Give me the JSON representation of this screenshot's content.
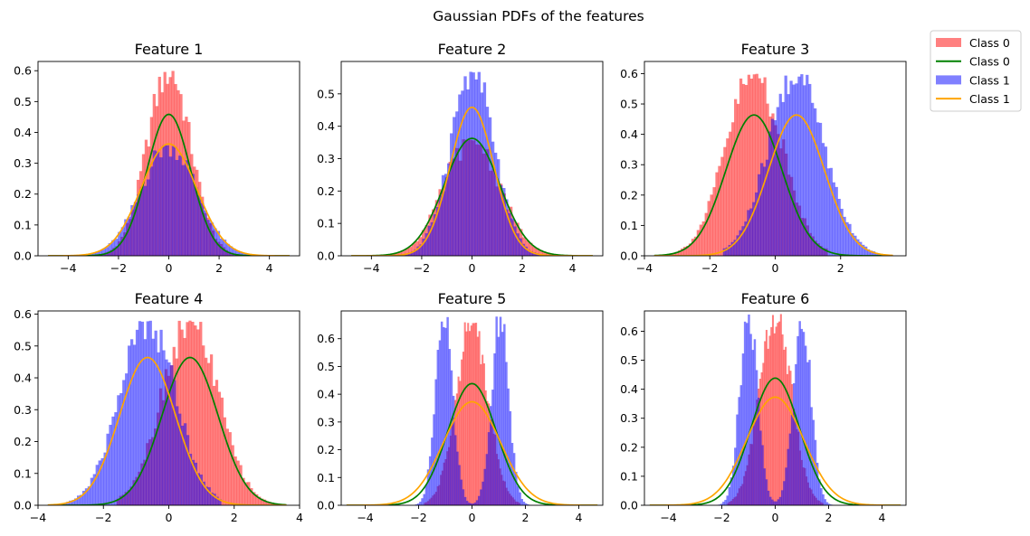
{
  "figure": {
    "suptitle": "Gaussian PDFs of the features"
  },
  "legend": {
    "placement": "upper-right-outside",
    "entries": [
      {
        "label": "Class 0",
        "kind": "patch",
        "color": "#ff8080"
      },
      {
        "label": "Class 0",
        "kind": "line",
        "color": "#008000"
      },
      {
        "label": "Class 1",
        "kind": "patch",
        "color": "#8080ff"
      },
      {
        "label": "Class 1",
        "kind": "line",
        "color": "#ffa500"
      }
    ]
  },
  "colors": {
    "class0_hist": "#ff0000",
    "class1_hist": "#0000ff",
    "class0_pdf": "#008000",
    "class1_pdf": "#ffa500",
    "hist_alpha": 0.5
  },
  "chart_data": [
    {
      "type": "histogram+line",
      "title": "Feature 1",
      "xlim": [
        -5.2,
        5.2
      ],
      "ylim": [
        0,
        0.63
      ],
      "xticks": [
        "-4",
        "-2",
        "0",
        "2",
        "4"
      ],
      "xtick_values": [
        -4,
        -2,
        0,
        2,
        4
      ],
      "yticks": [
        "0.0",
        "0.1",
        "0.2",
        "0.3",
        "0.4",
        "0.5",
        "0.6"
      ],
      "ytick_values": [
        0,
        0.1,
        0.2,
        0.3,
        0.4,
        0.5,
        0.6
      ],
      "series": [
        {
          "name": "Class 0",
          "kind": "hist",
          "mean": 0,
          "std": 0.87,
          "range": [
            -3.2,
            3.2
          ],
          "peak": 0.6
        },
        {
          "name": "Class 1",
          "kind": "hist",
          "mean": 0,
          "std": 1.1,
          "range": [
            -3.8,
            3.8
          ],
          "peak": 0.36
        },
        {
          "name": "Class 0",
          "kind": "pdf",
          "mean": 0,
          "std": 0.87,
          "range": [
            -4.8,
            4.8
          ]
        },
        {
          "name": "Class 1",
          "kind": "pdf",
          "mean": 0,
          "std": 1.1,
          "range": [
            -4.8,
            4.8
          ]
        }
      ]
    },
    {
      "type": "histogram+line",
      "title": "Feature 2",
      "xlim": [
        -5.2,
        5.2
      ],
      "ylim": [
        0,
        0.6
      ],
      "xticks": [
        "-4",
        "-2",
        "0",
        "2",
        "4"
      ],
      "xtick_values": [
        -4,
        -2,
        0,
        2,
        4
      ],
      "yticks": [
        "0.0",
        "0.1",
        "0.2",
        "0.3",
        "0.4",
        "0.5"
      ],
      "ytick_values": [
        0,
        0.1,
        0.2,
        0.3,
        0.4,
        0.5
      ],
      "series": [
        {
          "name": "Class 0",
          "kind": "hist",
          "mean": 0,
          "std": 1.1,
          "range": [
            -4.0,
            4.0
          ],
          "peak": 0.36
        },
        {
          "name": "Class 1",
          "kind": "hist",
          "mean": 0,
          "std": 0.87,
          "range": [
            -3.3,
            3.3
          ],
          "peak": 0.57
        },
        {
          "name": "Class 0",
          "kind": "pdf",
          "mean": 0,
          "std": 1.1,
          "range": [
            -4.8,
            4.8
          ]
        },
        {
          "name": "Class 1",
          "kind": "pdf",
          "mean": 0,
          "std": 0.87,
          "range": [
            -4.8,
            4.8
          ]
        }
      ]
    },
    {
      "type": "histogram+line",
      "title": "Feature 3",
      "xlim": [
        -4.0,
        4.0
      ],
      "ylim": [
        0,
        0.64
      ],
      "xticks": [
        "-4",
        "-2",
        "0",
        "2"
      ],
      "xtick_values": [
        -4,
        -2,
        0,
        2
      ],
      "yticks": [
        "0.0",
        "0.1",
        "0.2",
        "0.3",
        "0.4",
        "0.5",
        "0.6"
      ],
      "ytick_values": [
        0,
        0.1,
        0.2,
        0.3,
        0.4,
        0.5,
        0.6
      ],
      "series": [
        {
          "name": "Class 0",
          "kind": "hist",
          "mean": -0.65,
          "std": 0.86,
          "range": [
            -3.3,
            1.6
          ],
          "peak": 0.6
        },
        {
          "name": "Class 1",
          "kind": "hist",
          "mean": 0.65,
          "std": 0.86,
          "range": [
            -1.6,
            3.3
          ],
          "peak": 0.6
        },
        {
          "name": "Class 0",
          "kind": "pdf",
          "mean": -0.65,
          "std": 0.86,
          "range": [
            -3.7,
            3.6
          ]
        },
        {
          "name": "Class 1",
          "kind": "pdf",
          "mean": 0.65,
          "std": 0.86,
          "range": [
            -3.7,
            3.6
          ]
        }
      ]
    },
    {
      "type": "histogram+line",
      "title": "Feature 4",
      "xlim": [
        -4.0,
        4.0
      ],
      "ylim": [
        0,
        0.61
      ],
      "xticks": [
        "-4",
        "-2",
        "0",
        "2",
        "4"
      ],
      "xtick_values": [
        -4,
        -2,
        0,
        2,
        4
      ],
      "yticks": [
        "0.0",
        "0.1",
        "0.2",
        "0.3",
        "0.4",
        "0.5",
        "0.6"
      ],
      "ytick_values": [
        0,
        0.1,
        0.2,
        0.3,
        0.4,
        0.5,
        0.6
      ],
      "series": [
        {
          "name": "Class 0",
          "kind": "hist",
          "mean": 0.65,
          "std": 0.86,
          "range": [
            -1.6,
            3.3
          ],
          "peak": 0.58
        },
        {
          "name": "Class 1",
          "kind": "hist",
          "mean": -0.65,
          "std": 0.86,
          "range": [
            -3.3,
            1.6
          ],
          "peak": 0.58
        },
        {
          "name": "Class 0",
          "kind": "pdf",
          "mean": 0.65,
          "std": 0.86,
          "range": [
            -3.7,
            3.6
          ]
        },
        {
          "name": "Class 1",
          "kind": "pdf",
          "mean": -0.65,
          "std": 0.86,
          "range": [
            -3.7,
            3.6
          ]
        }
      ]
    },
    {
      "type": "histogram+line",
      "title": "Feature 5",
      "xlim": [
        -4.9,
        4.9
      ],
      "ylim": [
        0,
        0.7
      ],
      "xticks": [
        "-4",
        "-2",
        "0",
        "2",
        "4"
      ],
      "xtick_values": [
        -4,
        -2,
        0,
        2,
        4
      ],
      "yticks": [
        "0.0",
        "0.1",
        "0.2",
        "0.3",
        "0.4",
        "0.5",
        "0.6"
      ],
      "ytick_values": [
        0,
        0.1,
        0.2,
        0.3,
        0.4,
        0.5,
        0.6
      ],
      "series": [
        {
          "name": "Class 0",
          "kind": "hist",
          "mean": 0,
          "std": 0.6,
          "range": [
            -1.8,
            1.8
          ],
          "peak": 0.66
        },
        {
          "name": "Class 1",
          "kind": "hist",
          "bimodal": true,
          "modes": [
            -1.05,
            1.05
          ],
          "std": 0.32,
          "range": [
            -2.2,
            2.2
          ],
          "peak": 0.68
        },
        {
          "name": "Class 0",
          "kind": "pdf",
          "mean": 0,
          "std": 0.91,
          "range": [
            -4.7,
            4.7
          ]
        },
        {
          "name": "Class 1",
          "kind": "pdf",
          "mean": 0,
          "std": 1.07,
          "range": [
            -4.7,
            4.7
          ]
        }
      ]
    },
    {
      "type": "histogram+line",
      "title": "Feature 6",
      "xlim": [
        -4.9,
        4.9
      ],
      "ylim": [
        0,
        0.67
      ],
      "xticks": [
        "-4",
        "-2",
        "0",
        "2",
        "4"
      ],
      "xtick_values": [
        -4,
        -2,
        0,
        2,
        4
      ],
      "yticks": [
        "0.0",
        "0.1",
        "0.2",
        "0.3",
        "0.4",
        "0.5",
        "0.6"
      ],
      "ytick_values": [
        0,
        0.1,
        0.2,
        0.3,
        0.4,
        0.5,
        0.6
      ],
      "series": [
        {
          "name": "Class 0",
          "kind": "hist",
          "mean": 0,
          "std": 0.6,
          "range": [
            -1.8,
            1.8
          ],
          "peak": 0.66
        },
        {
          "name": "Class 1",
          "kind": "hist",
          "bimodal": true,
          "modes": [
            -1.0,
            1.0
          ],
          "std": 0.33,
          "range": [
            -2.2,
            2.2
          ],
          "peak": 0.66
        },
        {
          "name": "Class 0",
          "kind": "pdf",
          "mean": 0,
          "std": 0.91,
          "range": [
            -4.7,
            4.7
          ]
        },
        {
          "name": "Class 1",
          "kind": "pdf",
          "mean": 0,
          "std": 1.07,
          "range": [
            -4.7,
            4.7
          ]
        }
      ]
    }
  ]
}
